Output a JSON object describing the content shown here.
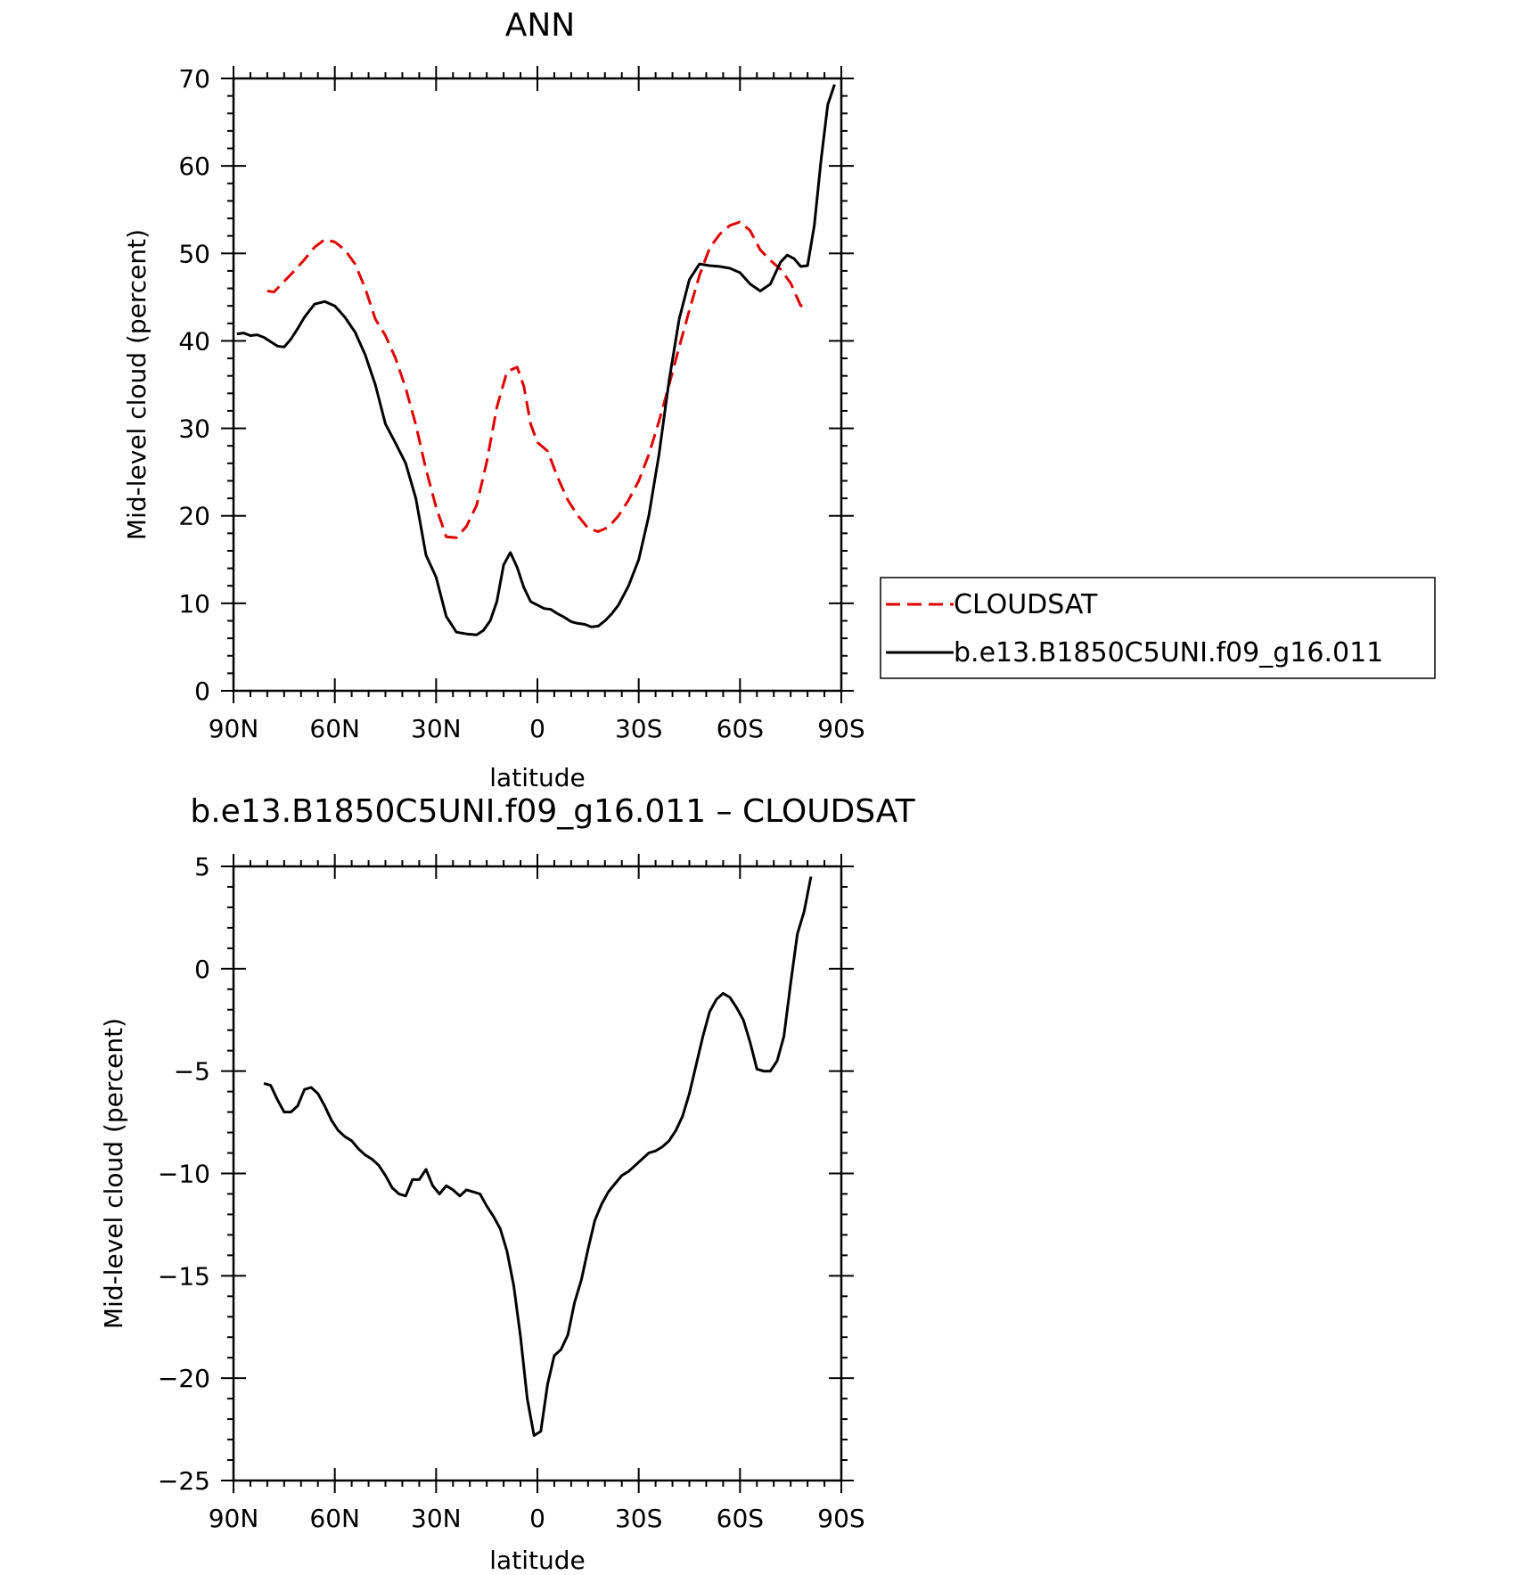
{
  "chart_data": [
    {
      "type": "line",
      "title": "ANN",
      "xlabel": "latitude",
      "ylabel": "Mid-level cloud (percent)",
      "xlim": [
        90,
        -90
      ],
      "ylim": [
        0,
        70
      ],
      "x_ticks": [
        90,
        60,
        30,
        0,
        -30,
        -60,
        -90
      ],
      "x_tick_labels": [
        "90N",
        "60N",
        "30N",
        "0",
        "30S",
        "60S",
        "90S"
      ],
      "y_ticks": [
        0,
        10,
        20,
        30,
        40,
        50,
        60,
        70
      ],
      "y_tick_labels": [
        "0",
        "10",
        "20",
        "30",
        "40",
        "50",
        "60",
        "70"
      ],
      "legend_position": "right",
      "series": [
        {
          "name": "CLOUDSAT",
          "color": "#e00000",
          "dash": "dashed",
          "x": [
            80,
            78,
            75,
            72,
            69,
            66,
            63,
            60,
            57,
            54,
            51,
            48,
            45,
            42,
            39,
            36,
            33,
            30,
            27,
            24,
            21,
            18,
            15,
            12,
            9,
            6,
            4,
            2,
            0,
            -3,
            -6,
            -9,
            -12,
            -15,
            -18,
            -21,
            -24,
            -27,
            -30,
            -33,
            -36,
            -39,
            -42,
            -45,
            -48,
            -51,
            -54,
            -57,
            -60,
            -63,
            -66,
            -69,
            -72,
            -75,
            -78,
            -80
          ],
          "y": [
            45.7,
            45.6,
            46.8,
            48.0,
            49.3,
            50.7,
            51.6,
            51.3,
            50.4,
            48.8,
            46.0,
            42.5,
            40.6,
            38.0,
            34.6,
            30.4,
            25.3,
            21.0,
            17.6,
            17.5,
            18.8,
            21.2,
            26.2,
            32.4,
            36.5,
            37.0,
            34.8,
            30.5,
            28.4,
            27.4,
            24.4,
            21.8,
            20.0,
            18.6,
            18.2,
            18.7,
            20.0,
            21.8,
            24.0,
            27.0,
            30.8,
            35.0,
            39.3,
            43.5,
            47.5,
            50.6,
            52.2,
            53.2,
            53.6,
            52.6,
            50.4,
            49.2,
            48.2,
            46.6,
            44.0,
            44.2
          ]
        },
        {
          "name": "b.e13.B1850C5UNI.f09_g16.011",
          "color": "#000000",
          "dash": "solid",
          "x": [
            89,
            87,
            85,
            83,
            81,
            79,
            77,
            75,
            73,
            71,
            69,
            66,
            63,
            60,
            57,
            54,
            51,
            48,
            45,
            42,
            39,
            36,
            33,
            30,
            27,
            24,
            21,
            18,
            16,
            14,
            12,
            10,
            8,
            6,
            4,
            2,
            0,
            -2,
            -4,
            -6,
            -8,
            -10,
            -12,
            -14,
            -16,
            -18,
            -20,
            -22,
            -24,
            -27,
            -30,
            -33,
            -36,
            -39,
            -42,
            -45,
            -48,
            -51,
            -54,
            -57,
            -60,
            -63,
            -66,
            -69,
            -72,
            -74,
            -76,
            -78,
            -80,
            -82,
            -84,
            -86,
            -88
          ],
          "y": [
            40.8,
            40.9,
            40.6,
            40.7,
            40.4,
            39.9,
            39.4,
            39.3,
            40.2,
            41.4,
            42.7,
            44.2,
            44.5,
            44.0,
            42.7,
            41.0,
            38.4,
            35.0,
            30.5,
            28.3,
            26.0,
            22.0,
            15.5,
            13.0,
            8.5,
            6.7,
            6.5,
            6.4,
            6.9,
            8.0,
            10.2,
            14.4,
            15.8,
            14.1,
            11.8,
            10.2,
            9.8,
            9.4,
            9.3,
            8.8,
            8.4,
            7.9,
            7.7,
            7.6,
            7.3,
            7.4,
            8.0,
            8.8,
            9.8,
            12.0,
            15.0,
            20.0,
            27.0,
            35.5,
            42.5,
            47.0,
            48.8,
            48.6,
            48.5,
            48.3,
            47.8,
            46.5,
            45.7,
            46.5,
            49.0,
            49.8,
            49.4,
            48.5,
            48.6,
            53.2,
            60.7,
            67.0,
            69.3
          ]
        }
      ]
    },
    {
      "type": "line",
      "title": "b.e13.B1850C5UNI.f09_g16.011 – CLOUDSAT",
      "xlabel": "latitude",
      "ylabel": "Mid-level cloud (percent)",
      "xlim": [
        90,
        -90
      ],
      "ylim": [
        -25,
        5
      ],
      "x_ticks": [
        90,
        60,
        30,
        0,
        -30,
        -60,
        -90
      ],
      "x_tick_labels": [
        "90N",
        "60N",
        "30N",
        "0",
        "30S",
        "60S",
        "90S"
      ],
      "y_ticks": [
        -25,
        -20,
        -15,
        -10,
        -5,
        0,
        5
      ],
      "y_tick_labels": [
        "−25",
        "−20",
        "−15",
        "−10",
        "−5",
        "0",
        "5"
      ],
      "series": [
        {
          "color": "#000000",
          "dash": "solid",
          "x": [
            81,
            79,
            77,
            75,
            73,
            71,
            69,
            67,
            65,
            63,
            61,
            59,
            57,
            55,
            53,
            51,
            49,
            47,
            45,
            43,
            41,
            39,
            37,
            35,
            33,
            31,
            29,
            27,
            25,
            23,
            21,
            19,
            17,
            15,
            13,
            11,
            9,
            7,
            5,
            3,
            1,
            -1,
            -3,
            -5,
            -7,
            -9,
            -11,
            -13,
            -15,
            -17,
            -19,
            -21,
            -23,
            -25,
            -27,
            -29,
            -31,
            -33,
            -35,
            -37,
            -39,
            -41,
            -43,
            -45,
            -47,
            -49,
            -51,
            -53,
            -55,
            -57,
            -59,
            -61,
            -63,
            -65,
            -67,
            -69,
            -71,
            -73,
            -75,
            -77,
            -79,
            -81
          ],
          "y": [
            -5.6,
            -5.7,
            -6.4,
            -7.0,
            -7.0,
            -6.7,
            -5.9,
            -5.8,
            -6.1,
            -6.7,
            -7.4,
            -7.9,
            -8.2,
            -8.4,
            -8.8,
            -9.1,
            -9.3,
            -9.6,
            -10.1,
            -10.7,
            -11.0,
            -11.1,
            -10.3,
            -10.3,
            -9.8,
            -10.6,
            -11.0,
            -10.6,
            -10.8,
            -11.1,
            -10.8,
            -10.9,
            -11.0,
            -11.6,
            -12.1,
            -12.7,
            -13.8,
            -15.5,
            -18.0,
            -21.0,
            -22.8,
            -22.6,
            -20.3,
            -18.9,
            -18.6,
            -17.9,
            -16.3,
            -15.2,
            -13.7,
            -12.3,
            -11.5,
            -10.9,
            -10.5,
            -10.1,
            -9.9,
            -9.6,
            -9.3,
            -9.0,
            -8.9,
            -8.7,
            -8.4,
            -7.9,
            -7.2,
            -6.1,
            -4.7,
            -3.3,
            -2.1,
            -1.5,
            -1.2,
            -1.4,
            -1.9,
            -2.5,
            -3.6,
            -4.9,
            -5.0,
            -5.0,
            -4.5,
            -3.3,
            -0.7,
            1.7,
            2.8,
            4.5
          ]
        }
      ]
    }
  ]
}
